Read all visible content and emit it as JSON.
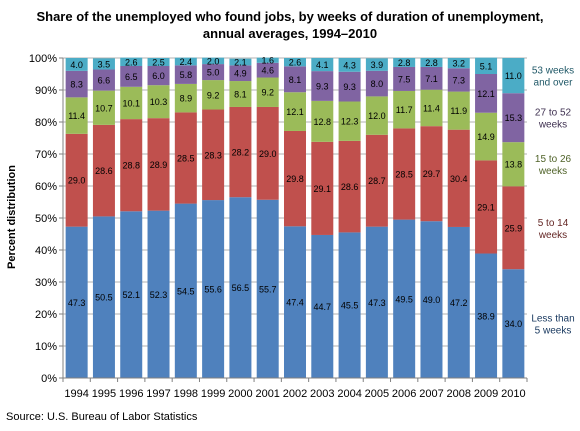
{
  "chart_data": {
    "type": "bar",
    "stacked": true,
    "title_line1": "Share of the unemployed who found jobs, by weeks of duration of unemployment,",
    "title_line2": "annual averages, 1994–2010",
    "ylabel": "Percent distribution",
    "xlabel": "",
    "ylim": [
      0,
      100
    ],
    "y_ticks": [
      "0%",
      "10%",
      "20%",
      "30%",
      "40%",
      "50%",
      "60%",
      "70%",
      "80%",
      "90%",
      "100%"
    ],
    "grid": true,
    "legend_placement": "right",
    "categories": [
      "1994",
      "1995",
      "1996",
      "1997",
      "1998",
      "1999",
      "2000",
      "2001",
      "2002",
      "2003",
      "2004",
      "2005",
      "2006",
      "2007",
      "2008",
      "2009",
      "2010"
    ],
    "series": [
      {
        "name": "Less than 5 weeks",
        "legend": [
          "Less than",
          "5 weeks"
        ],
        "color": "#4F81BD",
        "values": [
          47.3,
          50.5,
          52.1,
          52.3,
          54.5,
          55.6,
          56.5,
          55.7,
          47.4,
          44.7,
          45.5,
          47.3,
          49.5,
          49.0,
          47.2,
          38.9,
          34.0
        ]
      },
      {
        "name": "5 to 14 weeks",
        "legend": [
          "5 to 14",
          "weeks"
        ],
        "color": "#C0504D",
        "values": [
          29.0,
          28.6,
          28.8,
          28.9,
          28.5,
          28.3,
          28.2,
          29.0,
          29.8,
          29.1,
          28.6,
          28.7,
          28.5,
          29.7,
          30.4,
          29.1,
          25.9
        ]
      },
      {
        "name": "15 to 26 weeks",
        "legend": [
          "15 to 26",
          "weeks"
        ],
        "color": "#9BBB59",
        "values": [
          11.4,
          10.7,
          10.1,
          10.3,
          8.9,
          9.2,
          8.1,
          9.2,
          12.1,
          12.8,
          12.3,
          12.0,
          11.7,
          11.4,
          11.9,
          14.9,
          13.8
        ]
      },
      {
        "name": "27 to 52 weeks",
        "legend": [
          "27 to 52",
          "weeks"
        ],
        "color": "#8064A2",
        "values": [
          8.3,
          6.6,
          6.5,
          6.0,
          5.8,
          5.0,
          4.9,
          4.6,
          8.1,
          9.3,
          9.3,
          8.0,
          7.5,
          7.1,
          7.3,
          12.1,
          15.3
        ]
      },
      {
        "name": "53 weeks and over",
        "legend": [
          "53 weeks",
          "and over"
        ],
        "color": "#4BACC6",
        "values": [
          4.0,
          3.5,
          2.6,
          2.5,
          2.4,
          2.0,
          2.1,
          1.6,
          2.6,
          4.1,
          4.3,
          3.9,
          2.8,
          2.8,
          3.2,
          5.1,
          11.0
        ]
      }
    ]
  },
  "source": "Source: U.S. Bureau of Labor Statistics"
}
